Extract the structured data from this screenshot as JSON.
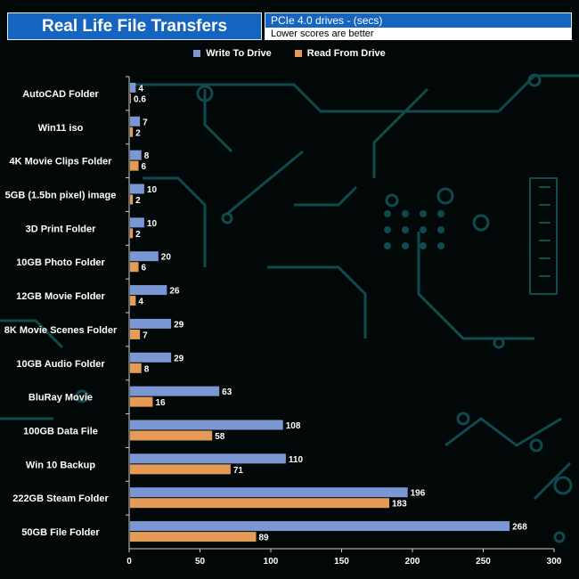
{
  "header": {
    "title": "Real Life File Transfers",
    "subtitle_top": "PCIe 4.0 drives - (secs)",
    "subtitle_bottom": "Lower scores are better"
  },
  "colors": {
    "write": "#7b97d3",
    "read": "#e59a55",
    "axis": "#cccccc",
    "circuit": "#0f4a4f"
  },
  "chart_data": {
    "type": "bar",
    "orientation": "horizontal",
    "categories": [
      "AutoCAD Folder",
      "Win11 iso",
      "4K Movie Clips Folder",
      "5GB (1.5bn pixel) image",
      "3D Print Folder",
      "10GB Photo Folder",
      "12GB Movie Folder",
      "8K Movie Scenes Folder",
      "10GB Audio Folder",
      "BluRay Movie",
      "100GB Data File",
      "Win 10 Backup",
      "222GB Steam Folder",
      "50GB File Folder"
    ],
    "series": [
      {
        "name": "Write To  Drive",
        "values": [
          4,
          7,
          8,
          10,
          10,
          20,
          26,
          29,
          29,
          63,
          108,
          110,
          196,
          268
        ]
      },
      {
        "name": "Read From  Drive",
        "values": [
          0.6,
          2,
          6,
          2,
          2,
          6,
          4,
          7,
          8,
          16,
          58,
          71,
          183,
          89
        ]
      }
    ],
    "xlim": [
      0,
      300
    ],
    "xticks": [
      0,
      50,
      100,
      150,
      200,
      250,
      300
    ],
    "legend_position": "top"
  }
}
